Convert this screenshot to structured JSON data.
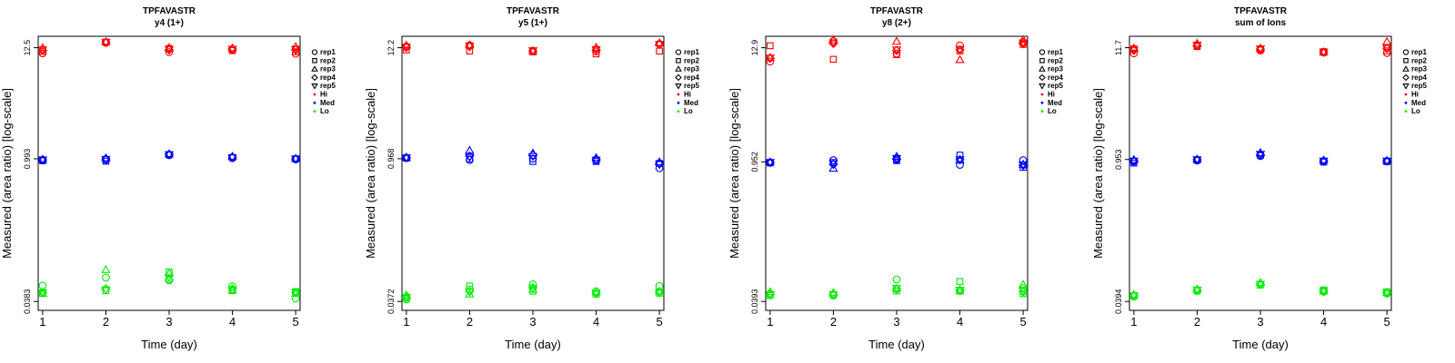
{
  "colors": {
    "Hi": "#ff0000",
    "Med": "#0000ff",
    "Lo": "#00ee00"
  },
  "chart_data": [
    {
      "type": "scatter",
      "title": "TPFAVASTR",
      "subtitle": "y4 (1+)",
      "xlabel": "Time (day)",
      "ylabel": "Measured (area ratio) [log-scale]",
      "x": [
        1,
        2,
        3,
        4,
        5
      ],
      "xticks": [
        "1",
        "2",
        "3",
        "4",
        "5"
      ],
      "ytick_labels": [
        "0.0383",
        "0.993",
        "12.5"
      ],
      "yticks": [
        0.0383,
        0.993,
        12.5
      ],
      "ylim": [
        0.0383,
        12.5
      ],
      "log_y": true,
      "legend": {
        "position": "right",
        "shape_entries": [
          "rep1",
          "rep2",
          "rep3",
          "rep4",
          "rep5"
        ],
        "color_entries": [
          "Hi",
          "Med",
          "Lo"
        ]
      },
      "series": [
        {
          "rep": "rep1",
          "level": "Hi",
          "values": [
            11.0,
            14.0,
            11.3,
            12.0,
            10.9
          ]
        },
        {
          "rep": "rep2",
          "level": "Hi",
          "values": [
            11.5,
            14.2,
            12.3,
            11.7,
            11.4
          ]
        },
        {
          "rep": "rep3",
          "level": "Hi",
          "values": [
            12.5,
            14.3,
            12.5,
            12.4,
            12.8
          ]
        },
        {
          "rep": "rep4",
          "level": "Hi",
          "values": [
            11.8,
            14.1,
            11.9,
            12.2,
            11.9
          ]
        },
        {
          "rep": "rep5",
          "level": "Hi",
          "values": [
            11.9,
            14.1,
            12.0,
            12.1,
            12.1
          ]
        },
        {
          "rep": "rep1",
          "level": "Med",
          "values": [
            0.96,
            0.97,
            1.08,
            1.01,
            0.98
          ]
        },
        {
          "rep": "rep2",
          "level": "Med",
          "values": [
            0.95,
            0.94,
            1.09,
            1.02,
            0.99
          ]
        },
        {
          "rep": "rep3",
          "level": "Med",
          "values": [
            0.98,
            1.01,
            1.11,
            1.05,
            1.0
          ]
        },
        {
          "rep": "rep4",
          "level": "Med",
          "values": [
            0.97,
            0.99,
            1.1,
            1.03,
            0.99
          ]
        },
        {
          "rep": "rep5",
          "level": "Med",
          "values": [
            0.97,
            0.98,
            1.09,
            1.02,
            0.99
          ]
        },
        {
          "rep": "rep1",
          "level": "Lo",
          "values": [
            0.055,
            0.066,
            0.062,
            0.054,
            0.041
          ]
        },
        {
          "rep": "rep2",
          "level": "Lo",
          "values": [
            0.046,
            0.049,
            0.075,
            0.049,
            0.048
          ]
        },
        {
          "rep": "rep3",
          "level": "Lo",
          "values": [
            0.046,
            0.079,
            0.073,
            0.05,
            0.046
          ]
        },
        {
          "rep": "rep4",
          "level": "Lo",
          "values": [
            0.047,
            0.051,
            0.063,
            0.051,
            0.047
          ]
        },
        {
          "rep": "rep5",
          "level": "Lo",
          "values": [
            0.047,
            0.05,
            0.066,
            0.05,
            0.047
          ]
        }
      ]
    },
    {
      "type": "scatter",
      "title": "TPFAVASTR",
      "subtitle": "y5 (1+)",
      "xlabel": "Time (day)",
      "ylabel": "Measured (area ratio) [log-scale]",
      "x": [
        1,
        2,
        3,
        4,
        5
      ],
      "xticks": [
        "1",
        "2",
        "3",
        "4",
        "5"
      ],
      "ytick_labels": [
        "0.0372",
        "0.968",
        "12.2"
      ],
      "yticks": [
        0.0372,
        0.968,
        12.2
      ],
      "ylim": [
        0.0372,
        12.2
      ],
      "log_y": true,
      "legend": {
        "position": "right",
        "shape_entries": [
          "rep1",
          "rep2",
          "rep3",
          "rep4",
          "rep5"
        ],
        "color_entries": [
          "Hi",
          "Med",
          "Lo"
        ]
      },
      "series": [
        {
          "rep": "rep1",
          "level": "Hi",
          "values": [
            12.5,
            12.9,
            11.3,
            11.2,
            13.3
          ]
        },
        {
          "rep": "rep2",
          "level": "Hi",
          "values": [
            11.6,
            11.3,
            11.1,
            10.6,
            11.3
          ]
        },
        {
          "rep": "rep3",
          "level": "Hi",
          "values": [
            12.9,
            13.0,
            11.4,
            12.3,
            13.6
          ]
        },
        {
          "rep": "rep4",
          "level": "Hi",
          "values": [
            12.3,
            12.5,
            11.3,
            11.6,
            13.1
          ]
        },
        {
          "rep": "rep5",
          "level": "Hi",
          "values": [
            12.4,
            12.7,
            11.4,
            11.7,
            13.2
          ]
        },
        {
          "rep": "rep1",
          "level": "Med",
          "values": [
            0.99,
            0.94,
            0.97,
            0.93,
            0.78
          ]
        },
        {
          "rep": "rep2",
          "level": "Med",
          "values": [
            0.98,
            0.96,
            0.91,
            0.91,
            0.87
          ]
        },
        {
          "rep": "rep3",
          "level": "Med",
          "values": [
            1.0,
            1.17,
            1.1,
            0.99,
            0.9
          ]
        },
        {
          "rep": "rep4",
          "level": "Med",
          "values": [
            0.99,
            1.03,
            1.05,
            0.95,
            0.86
          ]
        },
        {
          "rep": "rep5",
          "level": "Med",
          "values": [
            0.99,
            1.0,
            1.02,
            0.94,
            0.85
          ]
        },
        {
          "rep": "rep1",
          "level": "Lo",
          "values": [
            0.039,
            0.049,
            0.055,
            0.047,
            0.053
          ]
        },
        {
          "rep": "rep2",
          "level": "Lo",
          "values": [
            0.04,
            0.053,
            0.047,
            0.044,
            0.045
          ]
        },
        {
          "rep": "rep3",
          "level": "Lo",
          "values": [
            0.043,
            0.044,
            0.049,
            0.046,
            0.047
          ]
        },
        {
          "rep": "rep4",
          "level": "Lo",
          "values": [
            0.041,
            0.047,
            0.051,
            0.045,
            0.046
          ]
        },
        {
          "rep": "rep5",
          "level": "Lo",
          "values": [
            0.041,
            0.046,
            0.05,
            0.045,
            0.046
          ]
        }
      ]
    },
    {
      "type": "scatter",
      "title": "TPFAVASTR",
      "subtitle": "y8 (2+)",
      "xlabel": "Time (day)",
      "ylabel": "Measured (area ratio) [log-scale]",
      "x": [
        1,
        2,
        3,
        4,
        5
      ],
      "xticks": [
        "1",
        "2",
        "3",
        "4",
        "5"
      ],
      "ytick_labels": [
        "0.0393",
        "0.952",
        "12.9"
      ],
      "yticks": [
        0.0393,
        0.952,
        12.9
      ],
      "ylim": [
        0.0393,
        12.9
      ],
      "log_y": true,
      "legend": {
        "position": "right",
        "shape_entries": [
          "rep1",
          "rep2",
          "rep3",
          "rep4",
          "rep5"
        ],
        "color_entries": [
          "Hi",
          "Med",
          "Lo"
        ]
      },
      "series": [
        {
          "rep": "rep1",
          "level": "Hi",
          "values": [
            9.4,
            15.0,
            11.3,
            13.6,
            14.7
          ]
        },
        {
          "rep": "rep2",
          "level": "Hi",
          "values": [
            13.5,
            9.9,
            11.0,
            12.0,
            13.9
          ]
        },
        {
          "rep": "rep3",
          "level": "Hi",
          "values": [
            10.3,
            15.5,
            14.9,
            9.8,
            15.5
          ]
        },
        {
          "rep": "rep4",
          "level": "Hi",
          "values": [
            10.1,
            14.2,
            12.1,
            12.3,
            14.2
          ]
        },
        {
          "rep": "rep5",
          "level": "Hi",
          "values": [
            10.2,
            14.4,
            12.3,
            12.4,
            14.4
          ]
        },
        {
          "rep": "rep1",
          "level": "Med",
          "values": [
            0.94,
            0.99,
            1.0,
            0.89,
            0.99
          ]
        },
        {
          "rep": "rep2",
          "level": "Med",
          "values": [
            0.93,
            0.94,
            0.98,
            1.11,
            0.84
          ]
        },
        {
          "rep": "rep3",
          "level": "Med",
          "values": [
            0.95,
            0.82,
            1.08,
            0.99,
            0.9
          ]
        },
        {
          "rep": "rep4",
          "level": "Med",
          "values": [
            0.94,
            0.9,
            1.02,
            1.0,
            0.88
          ]
        },
        {
          "rep": "rep5",
          "level": "Med",
          "values": [
            0.94,
            0.91,
            1.03,
            1.0,
            0.89
          ]
        },
        {
          "rep": "rep1",
          "level": "Lo",
          "values": [
            0.047,
            0.045,
            0.065,
            0.05,
            0.053
          ]
        },
        {
          "rep": "rep2",
          "level": "Lo",
          "values": [
            0.045,
            0.046,
            0.05,
            0.062,
            0.047
          ]
        },
        {
          "rep": "rep3",
          "level": "Lo",
          "values": [
            0.049,
            0.048,
            0.053,
            0.05,
            0.058
          ]
        },
        {
          "rep": "rep4",
          "level": "Lo",
          "values": [
            0.046,
            0.046,
            0.052,
            0.051,
            0.049
          ]
        },
        {
          "rep": "rep5",
          "level": "Lo",
          "values": [
            0.046,
            0.046,
            0.053,
            0.051,
            0.05
          ]
        }
      ]
    },
    {
      "type": "scatter",
      "title": "TPFAVASTR",
      "subtitle": "sum of Ions",
      "xlabel": "Time (day)",
      "ylabel": "Measured (area ratio) [log-scale]",
      "x": [
        1,
        2,
        3,
        4,
        5
      ],
      "xticks": [
        "1",
        "2",
        "3",
        "4",
        "5"
      ],
      "ytick_labels": [
        "0.0394",
        "0.953",
        "11.7"
      ],
      "yticks": [
        0.0394,
        0.953,
        11.7
      ],
      "ylim": [
        0.0394,
        11.7
      ],
      "log_y": true,
      "legend": {
        "position": "right",
        "shape_entries": [
          "rep1",
          "rep2",
          "rep3",
          "rep4",
          "rep5"
        ],
        "color_entries": [
          "Hi",
          "Med",
          "Lo"
        ]
      },
      "series": [
        {
          "rep": "rep1",
          "level": "Hi",
          "values": [
            10.3,
            12.2,
            11.0,
            10.5,
            10.4
          ]
        },
        {
          "rep": "rep2",
          "level": "Hi",
          "values": [
            11.4,
            12.0,
            11.3,
            10.7,
            10.9
          ]
        },
        {
          "rep": "rep3",
          "level": "Hi",
          "values": [
            11.6,
            12.9,
            11.6,
            10.6,
            13.4
          ]
        },
        {
          "rep": "rep4",
          "level": "Hi",
          "values": [
            11.0,
            12.3,
            11.3,
            10.6,
            11.5
          ]
        },
        {
          "rep": "rep5",
          "level": "Hi",
          "values": [
            11.1,
            12.4,
            11.4,
            10.6,
            11.6
          ]
        },
        {
          "rep": "rep1",
          "level": "Med",
          "values": [
            0.91,
            0.93,
            1.03,
            0.92,
            0.92
          ]
        },
        {
          "rep": "rep2",
          "level": "Med",
          "values": [
            0.88,
            0.94,
            1.05,
            0.9,
            0.91
          ]
        },
        {
          "rep": "rep3",
          "level": "Med",
          "values": [
            0.95,
            0.96,
            1.11,
            0.94,
            0.93
          ]
        },
        {
          "rep": "rep4",
          "level": "Med",
          "values": [
            0.92,
            0.95,
            1.06,
            0.92,
            0.92
          ]
        },
        {
          "rep": "rep5",
          "level": "Med",
          "values": [
            0.92,
            0.95,
            1.07,
            0.92,
            0.92
          ]
        },
        {
          "rep": "rep1",
          "level": "Lo",
          "values": [
            0.044,
            0.05,
            0.058,
            0.049,
            0.047
          ]
        },
        {
          "rep": "rep2",
          "level": "Lo",
          "values": [
            0.045,
            0.05,
            0.057,
            0.051,
            0.049
          ]
        },
        {
          "rep": "rep3",
          "level": "Lo",
          "values": [
            0.046,
            0.052,
            0.06,
            0.05,
            0.048
          ]
        },
        {
          "rep": "rep4",
          "level": "Lo",
          "values": [
            0.045,
            0.051,
            0.058,
            0.05,
            0.048
          ]
        },
        {
          "rep": "rep5",
          "level": "Lo",
          "values": [
            0.045,
            0.051,
            0.058,
            0.05,
            0.048
          ]
        }
      ]
    }
  ]
}
